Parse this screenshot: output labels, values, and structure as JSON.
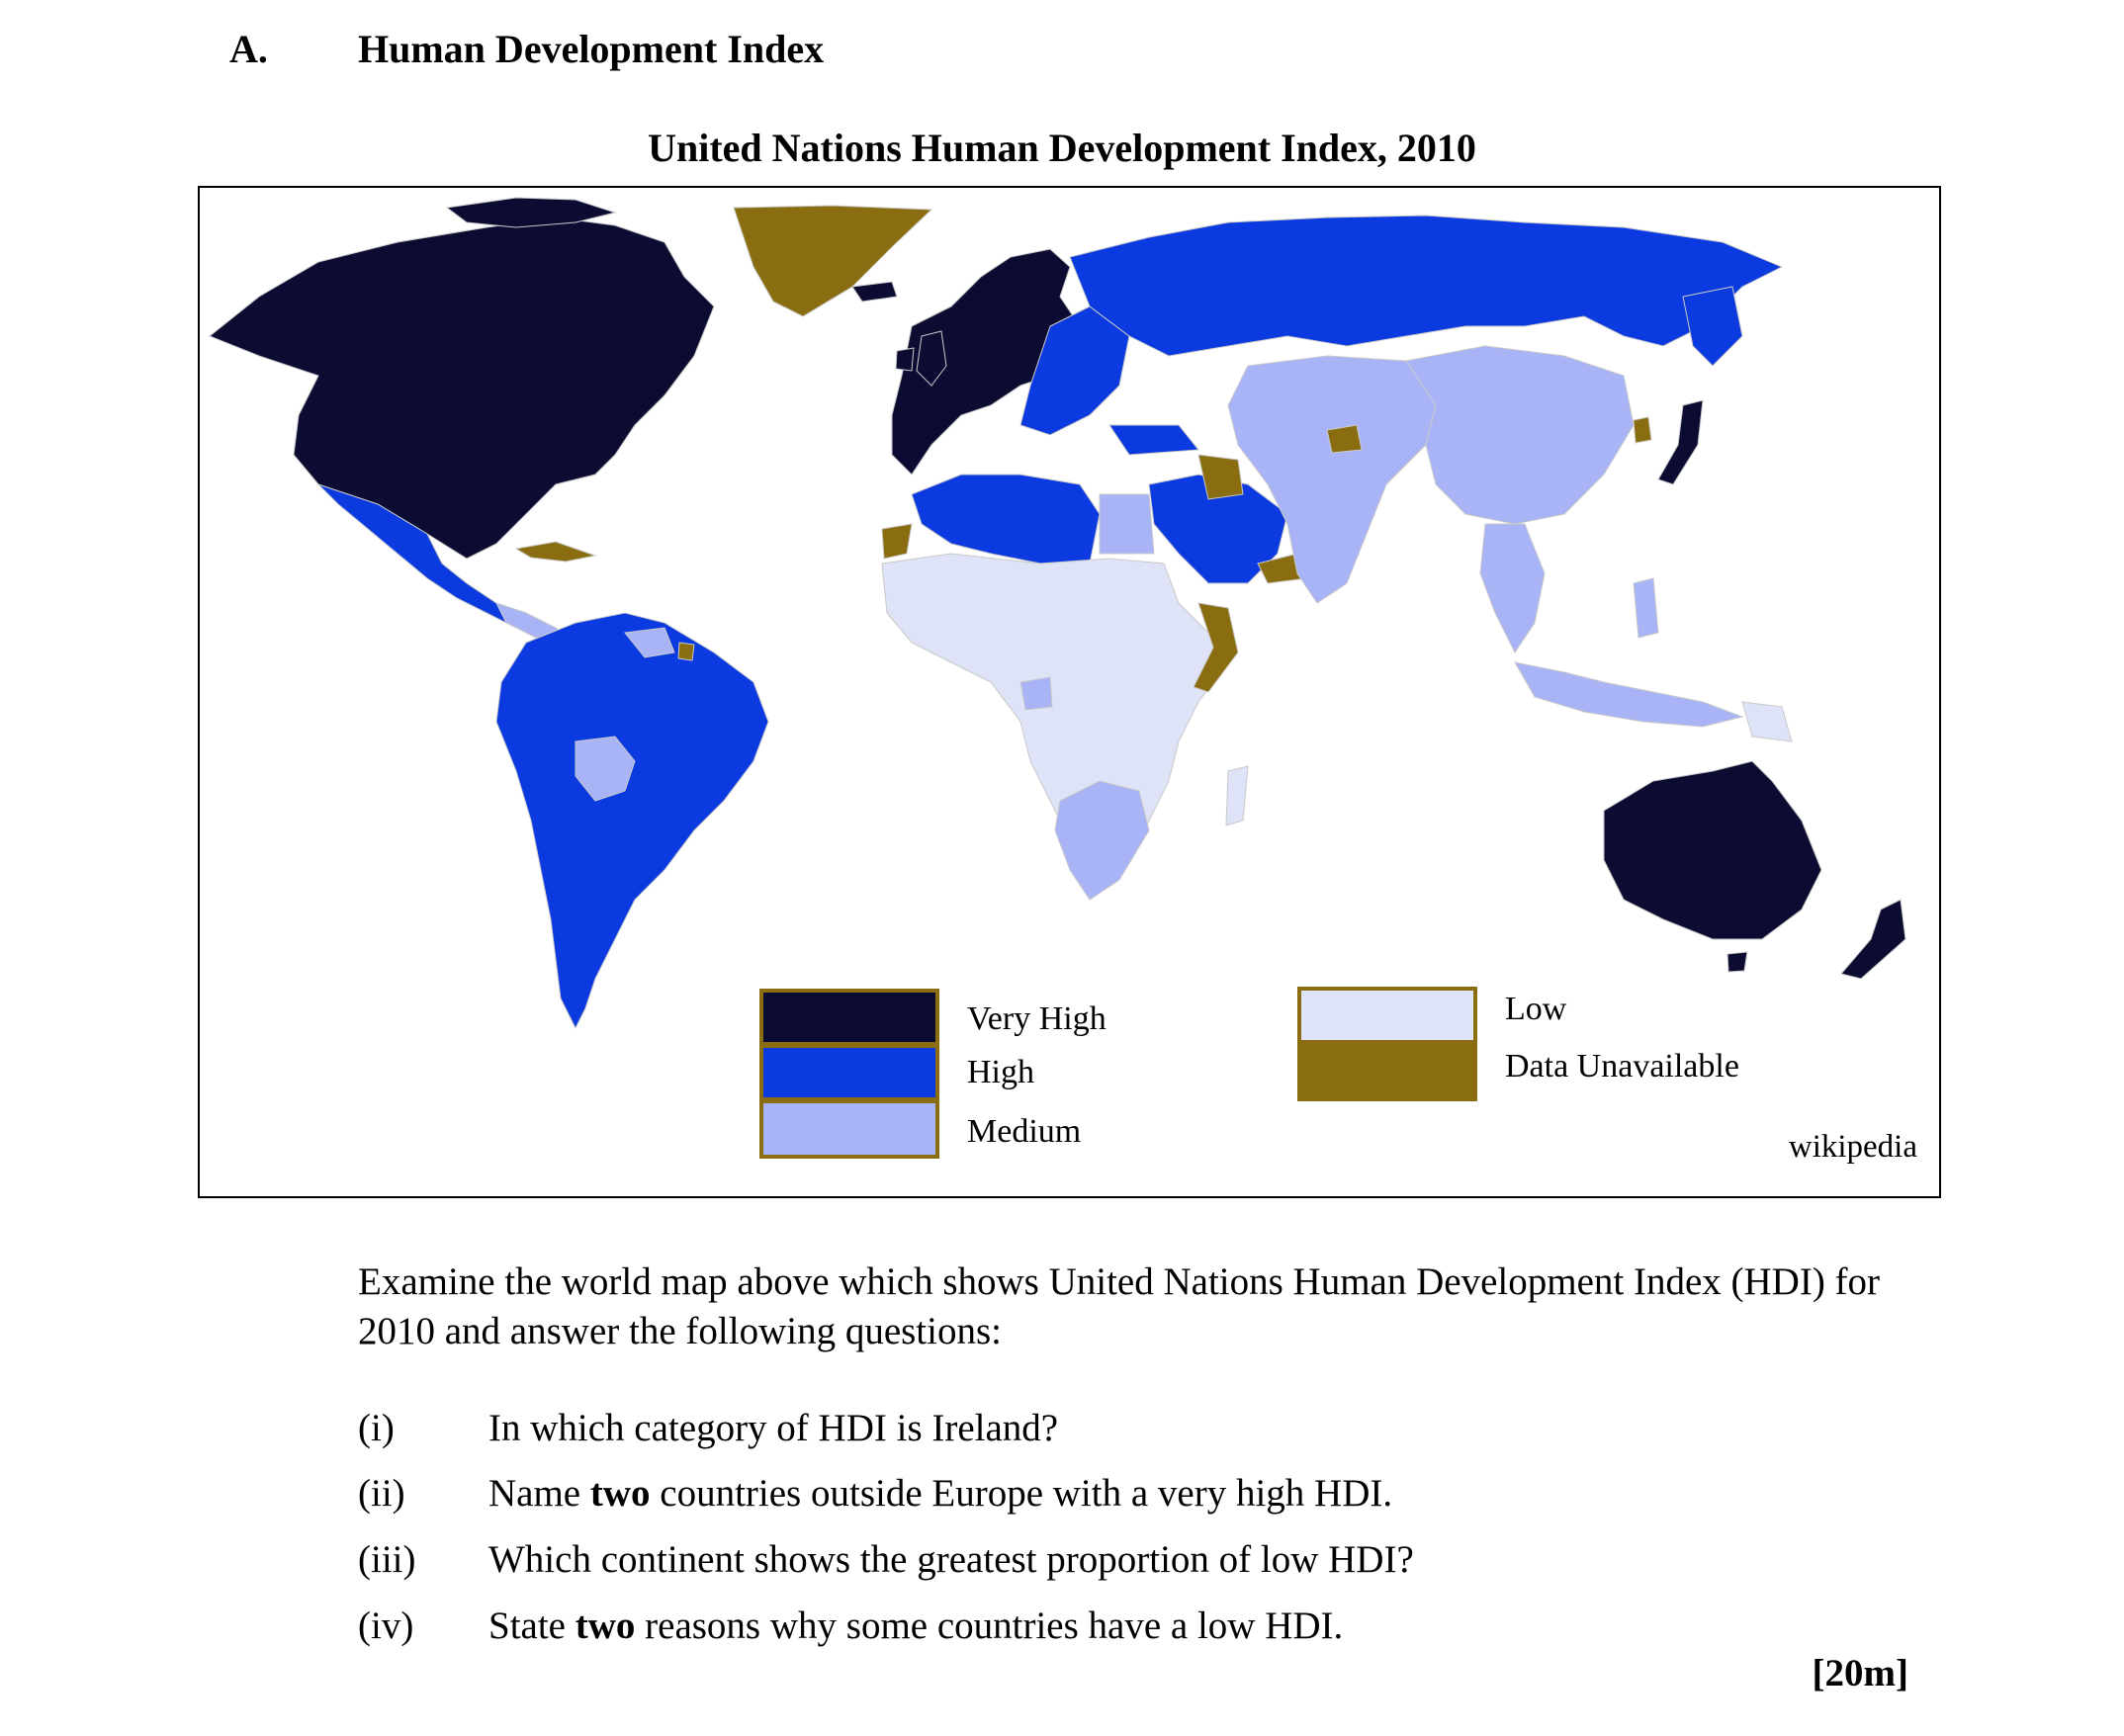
{
  "section": {
    "letter": "A.",
    "title": "Human Development Index"
  },
  "map": {
    "title": "United Nations Human Development Index, 2010",
    "credit": "wikipedia",
    "colors": {
      "ocean": "#ffffff",
      "very_high": "#0c0c33",
      "high": "#0b3be0",
      "medium": "#a8b4f5",
      "low": "#dfe3f8",
      "data_unavailable": "#8a6d10"
    },
    "legend": [
      {
        "key": "very_high",
        "label": "Very High"
      },
      {
        "key": "high",
        "label": "High"
      },
      {
        "key": "medium",
        "label": "Medium"
      },
      {
        "key": "low",
        "label": "Low"
      },
      {
        "key": "data_unavailable",
        "label": "Data Unavailable"
      }
    ]
  },
  "intro": "Examine the world map above which shows United Nations Human Development Index (HDI) for 2010 and answer the following questions:",
  "questions": [
    {
      "num": "(i)",
      "before": "In which category of HDI is Ireland?",
      "bold": "",
      "after": ""
    },
    {
      "num": "(ii)",
      "before": "Name ",
      "bold": "two",
      "after": " countries outside Europe with a very high HDI."
    },
    {
      "num": "(iii)",
      "before": "Which continent shows the greatest proportion of low HDI?",
      "bold": "",
      "after": ""
    },
    {
      "num": "(iv)",
      "before": "State ",
      "bold": "two",
      "after": " reasons why some countries have a low HDI."
    }
  ],
  "marks": "[20m]"
}
